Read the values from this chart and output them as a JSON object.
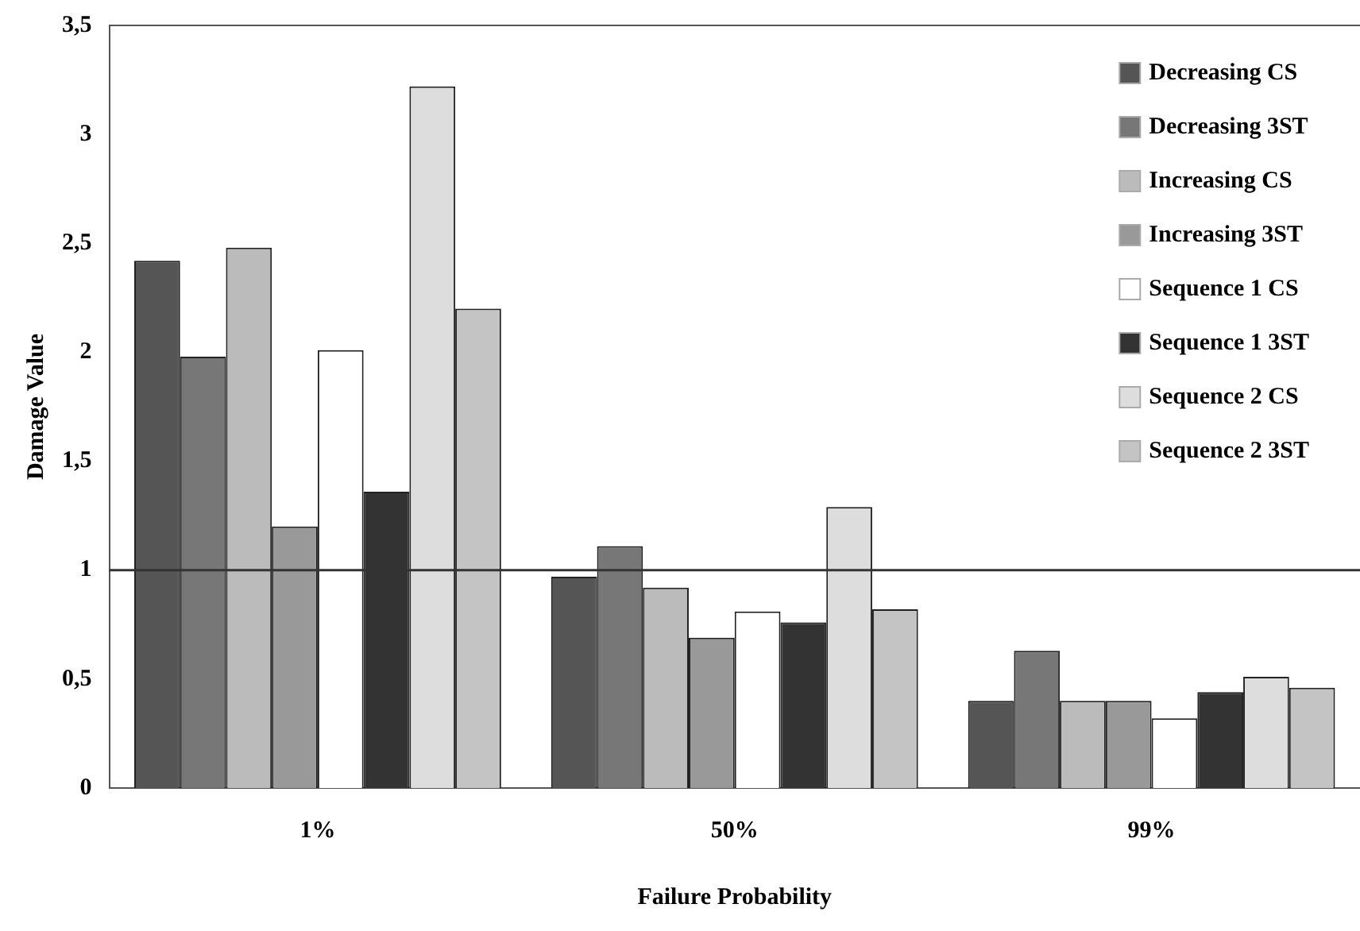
{
  "chart_data": {
    "type": "bar",
    "xlabel": "Failure Probability",
    "ylabel": "Damage Value",
    "categories": [
      "1%",
      "50%",
      "99%"
    ],
    "series": [
      {
        "name": "Decreasing CS",
        "color": "#555555",
        "values": [
          2.42,
          0.97,
          0.4
        ]
      },
      {
        "name": "Decreasing 3ST",
        "color": "#777777",
        "values": [
          1.98,
          1.11,
          0.63
        ]
      },
      {
        "name": "Increasing CS",
        "color": "#bbbbbb",
        "values": [
          2.48,
          0.92,
          0.4
        ]
      },
      {
        "name": "Increasing 3ST",
        "color": "#999999",
        "values": [
          1.2,
          0.69,
          0.4
        ]
      },
      {
        "name": "Sequence 1 CS",
        "color": "#ffffff",
        "values": [
          2.01,
          0.81,
          0.32
        ]
      },
      {
        "name": "Sequence 1 3ST",
        "color": "#333333",
        "values": [
          1.36,
          0.76,
          0.44
        ]
      },
      {
        "name": "Sequence 2 CS",
        "color": "#dddddd",
        "values": [
          3.22,
          1.29,
          0.51
        ]
      },
      {
        "name": "Sequence 2 3ST",
        "color": "#c4c4c4",
        "values": [
          2.2,
          0.82,
          0.46
        ]
      }
    ],
    "ylim": [
      0,
      3.5
    ],
    "yticks": [
      {
        "value": 0,
        "label": "0"
      },
      {
        "value": 0.5,
        "label": "0,5"
      },
      {
        "value": 1,
        "label": "1"
      },
      {
        "value": 1.5,
        "label": "1,5"
      },
      {
        "value": 2,
        "label": "2"
      },
      {
        "value": 2.5,
        "label": "2,5"
      },
      {
        "value": 3,
        "label": "3"
      },
      {
        "value": 3.5,
        "label": "3,5"
      }
    ],
    "ref_lines": [
      {
        "axis": "y",
        "value": 1,
        "color": "#333333"
      }
    ],
    "grid": false,
    "legend": "top right"
  }
}
